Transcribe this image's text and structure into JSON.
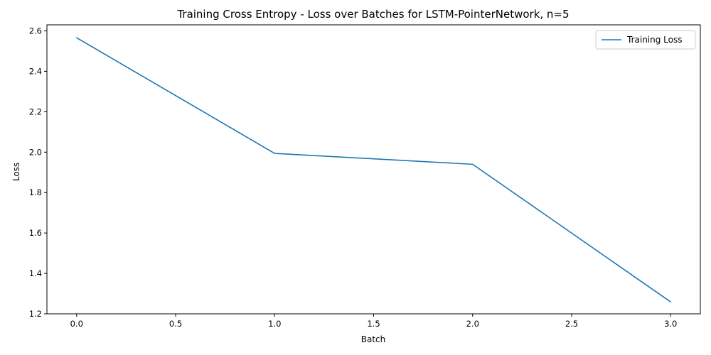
{
  "chart_data": {
    "type": "line",
    "title": "Training Cross Entropy - Loss over Batches for LSTM-PointerNetwork, n=5",
    "xlabel": "Batch",
    "ylabel": "Loss",
    "xlim": [
      -0.15,
      3.15
    ],
    "ylim": [
      1.2,
      2.63
    ],
    "x_ticks": [
      0.0,
      0.5,
      1.0,
      1.5,
      2.0,
      2.5,
      3.0
    ],
    "x_tick_labels": [
      "0.0",
      "0.5",
      "1.0",
      "1.5",
      "2.0",
      "2.5",
      "3.0"
    ],
    "y_ticks": [
      1.2,
      1.4,
      1.6,
      1.8,
      2.0,
      2.2,
      2.4,
      2.6
    ],
    "y_tick_labels": [
      "1.2",
      "1.4",
      "1.6",
      "1.8",
      "2.0",
      "2.2",
      "2.4",
      "2.6"
    ],
    "grid": false,
    "legend_position": "top-right",
    "series": [
      {
        "name": "Training Loss",
        "color": "#1f77b4",
        "x": [
          0,
          1,
          2,
          3
        ],
        "y": [
          2.566,
          1.994,
          1.94,
          1.259
        ]
      }
    ]
  }
}
